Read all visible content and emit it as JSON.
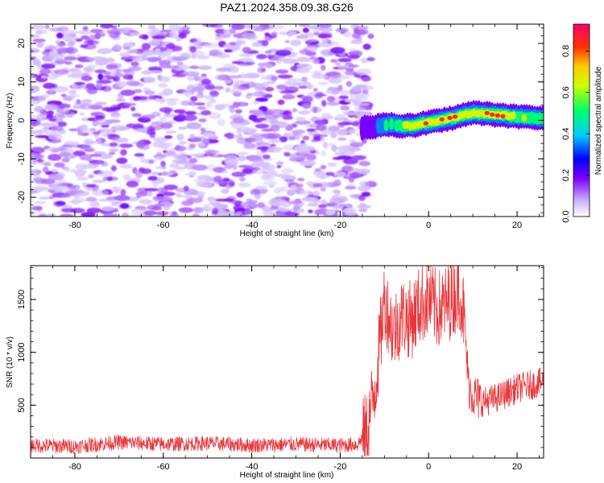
{
  "title": "PAZ1.2024.358.09.38.G26",
  "chart_data": [
    {
      "type": "heatmap",
      "xlabel": "Height of straight line (km)",
      "ylabel": "Frequency (Hz)",
      "xlim": [
        -90,
        26
      ],
      "ylim": [
        -25,
        25
      ],
      "xticks": [
        -80,
        -60,
        -40,
        -20,
        0,
        20
      ],
      "yticks": [
        -20,
        -10,
        0,
        10,
        20
      ],
      "colorbar": {
        "label": "Normalized spectral amplitude",
        "range": [
          0.0,
          0.93
        ],
        "ticks": [
          0.0,
          0.2,
          0.4,
          0.6,
          0.8
        ],
        "colormap": "white-purple-blue-cyan-green-yellow-red-magenta"
      },
      "noise_region": {
        "x": [
          -90,
          -13
        ],
        "y": [
          -25,
          25
        ],
        "amplitude_range": [
          0.05,
          0.2
        ]
      },
      "signal_ridge": {
        "x": [
          -15,
          -12,
          -9,
          -6,
          -3,
          0,
          3,
          6,
          10,
          15,
          20,
          26
        ],
        "y": [
          -2,
          -1.5,
          -1,
          -1.5,
          -1.3,
          -0.5,
          0,
          0.8,
          2,
          1.5,
          1,
          0.5
        ],
        "amplitude": [
          0.15,
          0.3,
          0.45,
          0.55,
          0.75,
          0.7,
          0.8,
          0.78,
          0.65,
          0.85,
          0.55,
          0.5
        ]
      }
    },
    {
      "type": "line",
      "xlabel": "Height of straight line (km)",
      "ylabel": "SNR (10 * v/v)",
      "xlim": [
        -90,
        26
      ],
      "ylim": [
        0,
        1820
      ],
      "xticks": [
        -80,
        -60,
        -40,
        -20,
        0,
        20
      ],
      "yticks": [
        500,
        1000,
        1500
      ],
      "color": "#e8373b",
      "series": [
        {
          "x": [
            -90,
            -80,
            -70,
            -60,
            -50,
            -40,
            -30,
            -20,
            -16,
            -14,
            -12,
            -10,
            -8,
            -6,
            -4,
            -2,
            0,
            2,
            4,
            6,
            7,
            8,
            9,
            10,
            12,
            14,
            16,
            18,
            20,
            22,
            24,
            26
          ],
          "y": [
            120,
            110,
            150,
            130,
            140,
            120,
            130,
            120,
            130,
            250,
            700,
            1500,
            1200,
            1350,
            1300,
            1450,
            1500,
            1400,
            1450,
            1550,
            1600,
            1350,
            700,
            600,
            530,
            550,
            580,
            620,
            660,
            680,
            700,
            720
          ]
        }
      ]
    }
  ]
}
